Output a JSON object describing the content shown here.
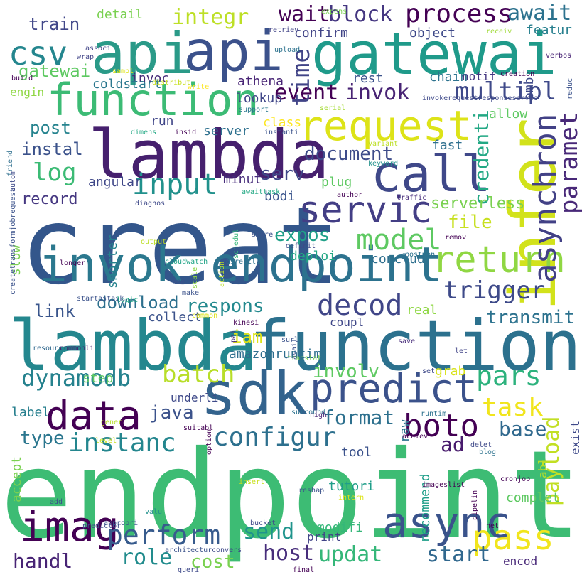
{
  "words": [
    {
      "text": "endpoint",
      "color": "#3dbc74"
    },
    {
      "text": "creat",
      "color": "#33568b"
    },
    {
      "text": "lambda",
      "color": "#24878e"
    },
    {
      "text": "function",
      "color": "#2c718e"
    },
    {
      "text": "api",
      "color": "#2a9a88"
    },
    {
      "text": "gatewai",
      "color": "#1f9a8a"
    },
    {
      "text": "lambda",
      "color": "#46206e"
    },
    {
      "text": "function",
      "color": "#3cbb75"
    },
    {
      "text": "sdk",
      "color": "#33638d"
    },
    {
      "text": "invok",
      "color": "#2b788e"
    },
    {
      "text": "endpoint",
      "color": "#2c728e"
    },
    {
      "text": "call",
      "color": "#3f4889"
    },
    {
      "text": "infer",
      "color": "#d2e21b"
    },
    {
      "text": "api",
      "color": "#3b518b"
    },
    {
      "text": "predict",
      "color": "#3b528b"
    },
    {
      "text": "async",
      "color": "#3a538b"
    },
    {
      "text": "imag",
      "color": "#440154"
    },
    {
      "text": "data",
      "color": "#440154"
    },
    {
      "text": "servic",
      "color": "#433e85"
    },
    {
      "text": "request",
      "color": "#dde318"
    },
    {
      "text": "return",
      "color": "#90d743"
    },
    {
      "text": "pass",
      "color": "#f1e51d"
    },
    {
      "text": "boto",
      "color": "#440154"
    },
    {
      "text": "csv",
      "color": "#24868e"
    },
    {
      "text": "process",
      "color": "#440154"
    },
    {
      "text": "multipl",
      "color": "#3e4989"
    },
    {
      "text": "asynchron",
      "color": "#424186"
    },
    {
      "text": "model",
      "color": "#5ec962"
    },
    {
      "text": "decod",
      "color": "#404688"
    },
    {
      "text": "perform",
      "color": "#375b8d"
    },
    {
      "text": "input",
      "color": "#21918c"
    },
    {
      "text": "configur",
      "color": "#2d708e"
    },
    {
      "text": "task",
      "color": "#f1e51d"
    },
    {
      "text": "pars",
      "color": "#2db27d"
    },
    {
      "text": "batch",
      "color": "#b8de29"
    },
    {
      "text": "instanc",
      "color": "#24868e"
    },
    {
      "text": "dynamodb",
      "color": "#26828e"
    },
    {
      "text": "trigger",
      "color": "#3e4a89"
    },
    {
      "text": "log",
      "color": "#3cbb75"
    },
    {
      "text": "wait",
      "color": "#440154"
    },
    {
      "text": "block",
      "color": "#453781"
    },
    {
      "text": "await",
      "color": "#2c728e"
    },
    {
      "text": "integr",
      "color": "#bddf26"
    },
    {
      "text": "event",
      "color": "#440154"
    },
    {
      "text": "invok",
      "color": "#482374"
    },
    {
      "text": "time",
      "color": "#414487"
    },
    {
      "text": "paramet",
      "color": "#482878"
    },
    {
      "text": "credenti",
      "color": "#22a884"
    },
    {
      "text": "document",
      "color": "#3e4c8a"
    },
    {
      "text": "serv",
      "color": "#3f4788"
    },
    {
      "text": "payload",
      "color": "#c2df23"
    },
    {
      "text": "send",
      "color": "#1f948c"
    },
    {
      "text": "updat",
      "color": "#35b779"
    },
    {
      "text": "host",
      "color": "#472d7b"
    },
    {
      "text": "start",
      "color": "#31688e"
    },
    {
      "text": "role",
      "color": "#228c8d"
    },
    {
      "text": "handl",
      "color": "#482475"
    },
    {
      "text": "ad",
      "color": "#481b6d"
    },
    {
      "text": "base",
      "color": "#30698e"
    },
    {
      "text": "format",
      "color": "#2d708e"
    },
    {
      "text": "java",
      "color": "#3b528b"
    },
    {
      "text": "respons",
      "color": "#23898e"
    },
    {
      "text": "link",
      "color": "#39558c"
    },
    {
      "text": "download",
      "color": "#2d708e"
    },
    {
      "text": "expos",
      "color": "#1fa088"
    },
    {
      "text": "file",
      "color": "#c8e020"
    },
    {
      "text": "post",
      "color": "#25838e"
    },
    {
      "text": "instal",
      "color": "#3b528b"
    },
    {
      "text": "train",
      "color": "#404688"
    },
    {
      "text": "gatewai",
      "color": "#5ec962"
    },
    {
      "text": "type",
      "color": "#2a768e"
    },
    {
      "text": "involv",
      "color": "#5ec962"
    },
    {
      "text": "transmit",
      "color": "#2c728e"
    },
    {
      "text": "iam",
      "color": "#dde318"
    },
    {
      "text": "record",
      "color": "#453781"
    },
    {
      "text": "serverless",
      "color": "#7ad151"
    },
    {
      "text": "cost",
      "color": "#7ad151"
    },
    {
      "text": "invoc",
      "color": "#472c7a"
    },
    {
      "text": "coldstart",
      "color": "#2a778e"
    },
    {
      "text": "athena",
      "color": "#482475"
    },
    {
      "text": "lookup",
      "color": "#404688"
    },
    {
      "text": "rest",
      "color": "#3b528b"
    },
    {
      "text": "notif",
      "color": "#453781"
    },
    {
      "text": "emb",
      "color": "#3e4989"
    },
    {
      "text": "chain",
      "color": "#2c728e"
    },
    {
      "text": "detail",
      "color": "#7ad151"
    },
    {
      "text": "object",
      "color": "#3e4989"
    },
    {
      "text": "confirm",
      "color": "#414487"
    },
    {
      "text": "featur",
      "color": "#277f8e"
    },
    {
      "text": "engin",
      "color": "#8fd744"
    },
    {
      "text": "run",
      "color": "#404688"
    },
    {
      "text": "server",
      "color": "#2d708e"
    },
    {
      "text": "class",
      "color": "#fde725"
    },
    {
      "text": "allow",
      "color": "#5ec962"
    },
    {
      "text": "fast",
      "color": "#2e6f8e"
    },
    {
      "text": "angular",
      "color": "#3f4788"
    },
    {
      "text": "minut",
      "color": "#472d7b"
    },
    {
      "text": "plug",
      "color": "#5ec962"
    },
    {
      "text": "bodi",
      "color": "#3a548c"
    },
    {
      "text": "shorter",
      "color": "#26828e"
    },
    {
      "text": "slow",
      "color": "#7ad151"
    },
    {
      "text": "deploi",
      "color": "#22a884"
    },
    {
      "text": "conclud",
      "color": "#2e6f8e"
    },
    {
      "text": "real",
      "color": "#8fd744"
    },
    {
      "text": "collect",
      "color": "#3b528b"
    },
    {
      "text": "coupl",
      "color": "#3f4788"
    },
    {
      "text": "amazonruntim",
      "color": "#2e6e8e"
    },
    {
      "text": "step",
      "color": "#5ec962"
    },
    {
      "text": "underli",
      "color": "#3e4989"
    },
    {
      "text": "label",
      "color": "#277f8e"
    },
    {
      "text": "grab",
      "color": "#d8e219"
    },
    {
      "text": "tool",
      "color": "#3b528b"
    },
    {
      "text": "raw",
      "color": "#2c728e"
    },
    {
      "text": "recommend",
      "color": "#1f9e89"
    },
    {
      "text": "tutori",
      "color": "#1f9e89"
    },
    {
      "text": "abl",
      "color": "#b5de2b"
    },
    {
      "text": "exist",
      "color": "#3e4989"
    },
    {
      "text": "complet",
      "color": "#5ec962"
    },
    {
      "text": "print",
      "color": "#414487"
    },
    {
      "text": "modifi",
      "color": "#35b779"
    },
    {
      "text": "encod",
      "color": "#482878"
    },
    {
      "text": "accept",
      "color": "#7ad151"
    },
    {
      "text": "expens",
      "color": "#7ad151"
    },
    {
      "text": "retriev",
      "color": "#414487"
    },
    {
      "text": "receiv",
      "color": "#a0da39"
    },
    {
      "text": "verbos",
      "color": "#482475"
    },
    {
      "text": "associ",
      "color": "#414487"
    },
    {
      "text": "sampl",
      "color": "#dde318"
    },
    {
      "text": "wrap",
      "color": "#414487"
    },
    {
      "text": "build",
      "color": "#440154"
    },
    {
      "text": "distribut",
      "color": "#c8e020"
    },
    {
      "text": "upload",
      "color": "#2c728e"
    },
    {
      "text": "write",
      "color": "#fde725"
    },
    {
      "text": "creation",
      "color": "#440154"
    },
    {
      "text": "reduc",
      "color": "#3b528b"
    },
    {
      "text": "invokerequestresponseservic",
      "color": "#3e4989"
    },
    {
      "text": "support",
      "color": "#2a788e"
    },
    {
      "text": "serial",
      "color": "#a5db36"
    },
    {
      "text": "createtransformjobrequest",
      "color": "#3b528b"
    },
    {
      "text": "dimens",
      "color": "#22a884"
    },
    {
      "text": "insid",
      "color": "#440154"
    },
    {
      "text": "instanti",
      "color": "#3b528b"
    },
    {
      "text": "variant",
      "color": "#bddf26"
    },
    {
      "text": "friend",
      "color": "#2e6f8e"
    },
    {
      "text": "keyword",
      "color": "#21918c"
    },
    {
      "text": "autom",
      "color": "#3e4a89"
    },
    {
      "text": "awaittask",
      "color": "#22a884"
    },
    {
      "text": "diagnos",
      "color": "#3e4989"
    },
    {
      "text": "traffic",
      "color": "#472c7a"
    },
    {
      "text": "author",
      "color": "#440154"
    },
    {
      "text": "permit",
      "color": "#3b528b"
    },
    {
      "text": "schedul",
      "color": "#35b779"
    },
    {
      "text": "store",
      "color": "#3b528b"
    },
    {
      "text": "remov",
      "color": "#440154"
    },
    {
      "text": "output",
      "color": "#bddf26"
    },
    {
      "text": "definit",
      "color": "#3e4989"
    },
    {
      "text": "postman",
      "color": "#2c728e"
    },
    {
      "text": "longer",
      "color": "#440154"
    },
    {
      "text": "cloudwatch",
      "color": "#20a386"
    },
    {
      "text": "directli",
      "color": "#2c728e"
    },
    {
      "text": "action",
      "color": "#bddf26"
    },
    {
      "text": "scale",
      "color": "#8fd744"
    },
    {
      "text": "web",
      "color": "#3b528b"
    },
    {
      "text": "make",
      "color": "#3b528b"
    },
    {
      "text": "startastask",
      "color": "#3b528b"
    },
    {
      "text": "logic",
      "color": "#22a884"
    },
    {
      "text": "common",
      "color": "#dde318"
    },
    {
      "text": "kinesi",
      "color": "#440154"
    },
    {
      "text": "pai",
      "color": "#472c7a"
    },
    {
      "text": "resourc",
      "color": "#31688e"
    },
    {
      "text": "commonli",
      "color": "#481b6d"
    },
    {
      "text": "surl",
      "color": "#3b528b"
    },
    {
      "text": "save",
      "color": "#472c7a"
    },
    {
      "text": "let",
      "color": "#414487"
    },
    {
      "text": "avail",
      "color": "#3b528b"
    },
    {
      "text": "gener",
      "color": "#b8de29"
    },
    {
      "text": "translat",
      "color": "#7ad151"
    },
    {
      "text": "set",
      "color": "#3e4989"
    },
    {
      "text": "surround",
      "color": "#2c728e"
    },
    {
      "text": "high",
      "color": "#482475"
    },
    {
      "text": "runtim",
      "color": "#2c728e"
    },
    {
      "text": "suitabl",
      "color": "#440154"
    },
    {
      "text": "achiev",
      "color": "#440154"
    },
    {
      "text": "level",
      "color": "#c8e020"
    },
    {
      "text": "delet",
      "color": "#3e4989"
    },
    {
      "text": "blog",
      "color": "#2c728e"
    },
    {
      "text": "option",
      "color": "#440154"
    },
    {
      "text": "insert",
      "color": "#c8e020"
    },
    {
      "text": "reshap",
      "color": "#3b528b"
    },
    {
      "text": "imageslist",
      "color": "#440154"
    },
    {
      "text": "cronjob",
      "color": "#440154"
    },
    {
      "text": "pipelin",
      "color": "#440154"
    },
    {
      "text": "add",
      "color": "#3b528b"
    },
    {
      "text": "intern",
      "color": "#dde318"
    },
    {
      "text": "valu",
      "color": "#21918c"
    },
    {
      "text": "predictor",
      "color": "#3e4989"
    },
    {
      "text": "appropri",
      "color": "#3b528b"
    },
    {
      "text": "bucket",
      "color": "#3e4989"
    },
    {
      "text": "net",
      "color": "#440154"
    },
    {
      "text": "architectur",
      "color": "#3b528b"
    },
    {
      "text": "convers",
      "color": "#3e4989"
    },
    {
      "text": "queri",
      "color": "#3e4989"
    },
    {
      "text": "final",
      "color": "#440154"
    }
  ]
}
